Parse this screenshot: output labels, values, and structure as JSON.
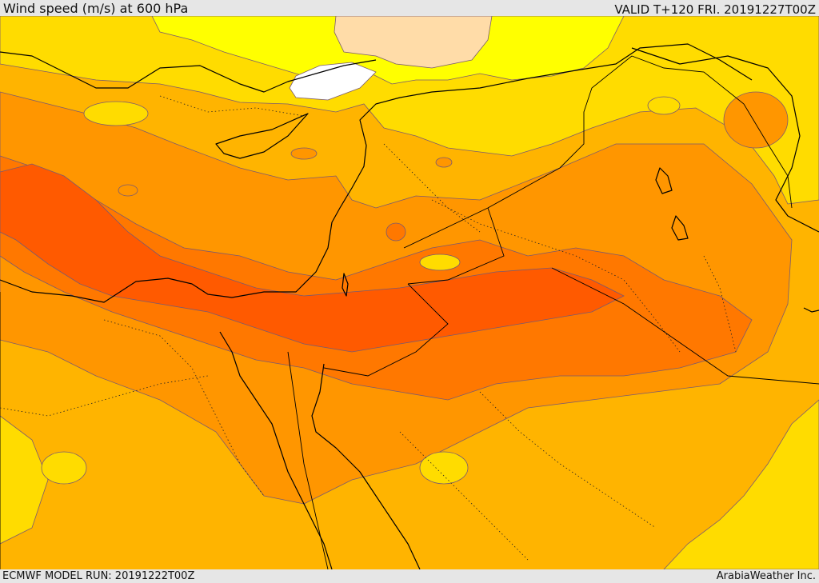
{
  "header": {
    "title": "Wind speed (m/s) at 600 hPa",
    "valid": "VALID T+120 FRI. 20191227T00Z"
  },
  "footer": {
    "model_run": "ECMWF MODEL RUN: 20191222T00Z",
    "credit": "ArabiaWeather Inc."
  },
  "colors": {
    "background": "#e6e6e6",
    "band_below_10": "#ffffff",
    "band_10_15": "#ffdca8",
    "band_15_20": "#ffff00",
    "band_20_25": "#ffdc00",
    "band_25_30": "#ffb400",
    "band_30_35": "#ff9600",
    "band_35_40": "#ff7800",
    "band_40_plus": "#ff5a00"
  }
}
